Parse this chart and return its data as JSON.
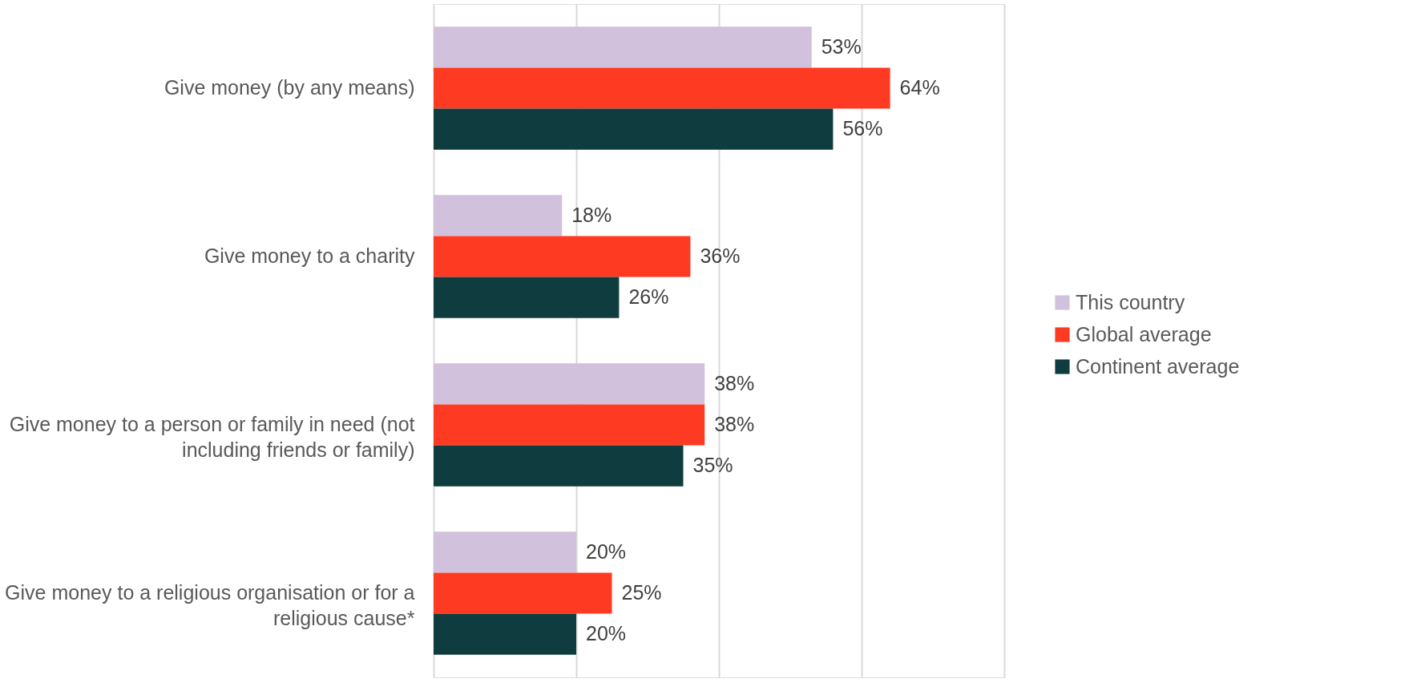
{
  "chart_data": {
    "type": "bar",
    "orientation": "horizontal",
    "categories": [
      "Give money (by any means)",
      "Give money to a charity",
      "Give money to a person or family in need (not including friends or family)",
      "Give money to a religious organisation or for a religious cause*"
    ],
    "series": [
      {
        "name": "This country",
        "color": "#d1c1dc",
        "values": [
          53,
          18,
          38,
          20
        ],
        "value_labels": [
          "53%",
          "18%",
          "38%",
          "20%"
        ]
      },
      {
        "name": "Global average",
        "color": "#ff3a22",
        "values": [
          64,
          36,
          38,
          25
        ],
        "value_labels": [
          "64%",
          "36%",
          "38%",
          "25%"
        ]
      },
      {
        "name": "Continent average",
        "color": "#0f3d3f",
        "values": [
          56,
          26,
          35,
          20
        ],
        "value_labels": [
          "56%",
          "26%",
          "35%",
          "20%"
        ]
      }
    ],
    "xlim": [
      0,
      80
    ],
    "xticks": [
      {
        "value": 0,
        "label": null
      },
      {
        "value": 20,
        "label": null
      },
      {
        "value": 40,
        "label": null
      },
      {
        "value": 60,
        "label": null
      },
      {
        "value": 80,
        "label": null
      }
    ],
    "grid": "x",
    "legend": "right",
    "tick_labels": "y"
  }
}
